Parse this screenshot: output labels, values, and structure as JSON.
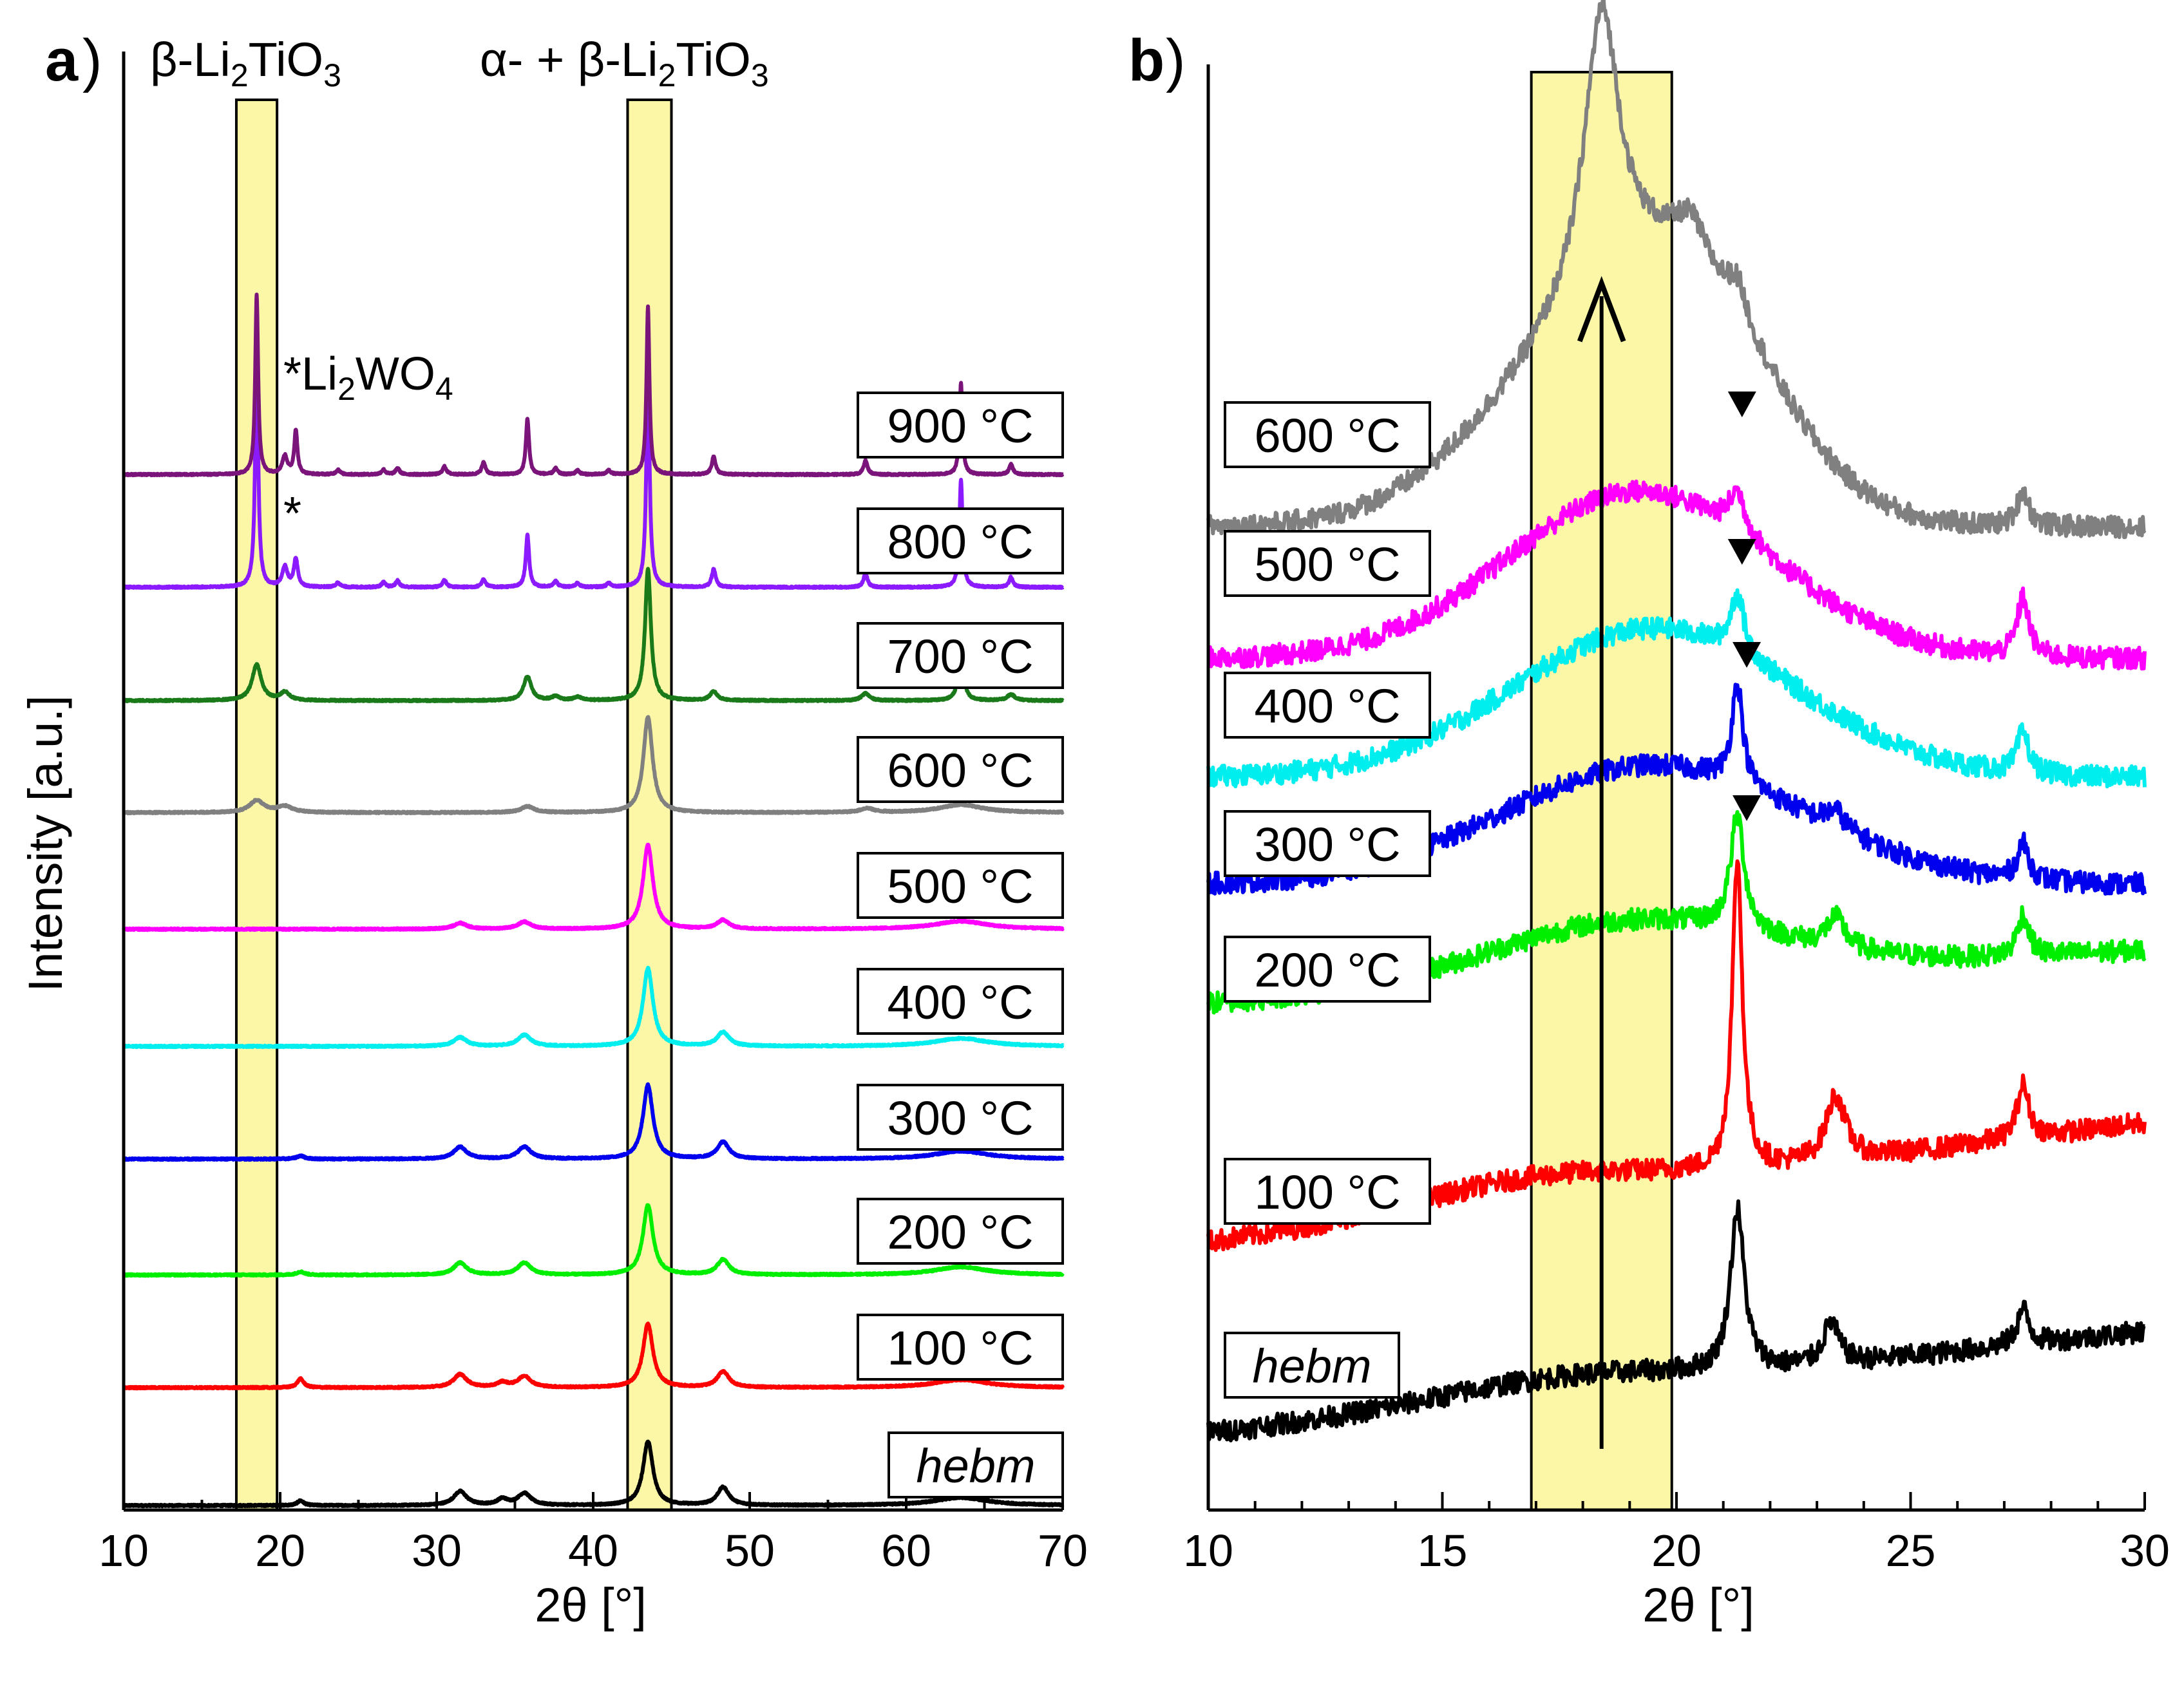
{
  "chart_data": [
    {
      "type": "line",
      "panel_label": "a",
      "xlabel": "2θ [°]",
      "ylabel": "Intensity [a.u.]",
      "xlim": [
        10,
        70
      ],
      "x_ticks": [
        10,
        20,
        30,
        40,
        50,
        60,
        70
      ],
      "y_ticks_shown": false,
      "highlight_bands": [
        {
          "x": [
            17.2,
            19.8
          ],
          "color": "#fbf7a6"
        },
        {
          "x": [
            42.2,
            45.0
          ],
          "color": "#fbf7a6"
        }
      ],
      "annotations": [
        {
          "text": "β-Li",
          "sub": "2",
          "text2": "TiO",
          "sub2": "3",
          "id": "beta"
        },
        {
          "text": "α- + β-Li",
          "sub": "2",
          "text2": "TiO",
          "sub2": "3",
          "id": "alphabeta"
        },
        {
          "text": "*",
          "id": "star-900"
        },
        {
          "text": "Li",
          "sub": "2",
          "text2": "WO",
          "sub2": "4",
          "id": "li2wo4"
        },
        {
          "text": "*",
          "id": "star-800"
        }
      ],
      "series": [
        {
          "name": "hebm",
          "italic": true,
          "color": "#000000",
          "offset": 0,
          "baseline": 0.1,
          "peaks": [
            [
              21.3,
              0.12,
              0.25
            ],
            [
              31.5,
              0.35,
              0.5
            ],
            [
              34.2,
              0.15,
              0.4
            ],
            [
              35.6,
              0.3,
              0.5
            ],
            [
              43.5,
              1.6,
              0.38
            ],
            [
              48.3,
              0.45,
              0.45
            ],
            [
              63.5,
              0.2,
              2.0
            ]
          ]
        },
        {
          "name": "100 °C",
          "color": "#ff0000",
          "offset": 1,
          "baseline": 0.1,
          "peaks": [
            [
              21.3,
              0.22,
              0.25
            ],
            [
              31.5,
              0.33,
              0.5
            ],
            [
              34.2,
              0.12,
              0.4
            ],
            [
              35.6,
              0.28,
              0.5
            ],
            [
              43.5,
              1.6,
              0.38
            ],
            [
              48.3,
              0.4,
              0.45
            ],
            [
              63.5,
              0.2,
              2.0
            ]
          ]
        },
        {
          "name": "200 °C",
          "color": "#00ee00",
          "offset": 2,
          "baseline": 0.1,
          "peaks": [
            [
              21.3,
              0.08,
              0.3
            ],
            [
              31.5,
              0.3,
              0.5
            ],
            [
              35.6,
              0.3,
              0.5
            ],
            [
              43.5,
              1.75,
              0.38
            ],
            [
              48.3,
              0.38,
              0.45
            ],
            [
              63.5,
              0.2,
              2.0
            ]
          ]
        },
        {
          "name": "300 °C",
          "color": "#0000ee",
          "offset": 3,
          "baseline": 0.1,
          "peaks": [
            [
              21.3,
              0.08,
              0.3
            ],
            [
              31.5,
              0.3,
              0.5
            ],
            [
              35.6,
              0.3,
              0.5
            ],
            [
              43.5,
              1.85,
              0.38
            ],
            [
              48.3,
              0.42,
              0.45
            ],
            [
              63.5,
              0.2,
              2.0
            ]
          ]
        },
        {
          "name": "400 °C",
          "color": "#00eeee",
          "offset": 4,
          "baseline": 0.1,
          "peaks": [
            [
              31.5,
              0.22,
              0.5
            ],
            [
              35.6,
              0.28,
              0.5
            ],
            [
              43.5,
              1.95,
              0.38
            ],
            [
              48.3,
              0.35,
              0.45
            ],
            [
              63.5,
              0.2,
              2.0
            ]
          ]
        },
        {
          "name": "500 °C",
          "color": "#ff00ff",
          "offset": 5,
          "baseline": 0.1,
          "peaks": [
            [
              31.5,
              0.15,
              0.5
            ],
            [
              35.6,
              0.18,
              0.5
            ],
            [
              43.5,
              2.1,
              0.38
            ],
            [
              48.3,
              0.22,
              0.45
            ],
            [
              63.5,
              0.2,
              2.0
            ]
          ]
        },
        {
          "name": "600 °C",
          "color": "#808080",
          "offset": 6,
          "baseline": 0.1,
          "peaks": [
            [
              18.5,
              0.3,
              0.55
            ],
            [
              20.3,
              0.15,
              0.6
            ],
            [
              35.8,
              0.15,
              0.5
            ],
            [
              43.5,
              2.4,
              0.35
            ],
            [
              57.5,
              0.1,
              0.5
            ],
            [
              63.5,
              0.2,
              1.6
            ]
          ]
        },
        {
          "name": "700 °C",
          "color": "#1a7a1a",
          "offset": 7,
          "baseline": 0.1,
          "peaks": [
            [
              18.5,
              0.9,
              0.35
            ],
            [
              20.3,
              0.2,
              0.35
            ],
            [
              35.8,
              0.6,
              0.3
            ],
            [
              37.6,
              0.1,
              0.3
            ],
            [
              39.0,
              0.08,
              0.3
            ],
            [
              43.5,
              3.3,
              0.22
            ],
            [
              47.7,
              0.22,
              0.28
            ],
            [
              57.4,
              0.18,
              0.3
            ],
            [
              63.5,
              1.2,
              0.2
            ],
            [
              66.7,
              0.15,
              0.3
            ]
          ]
        },
        {
          "name": "800 °C",
          "color": "#8c1aff",
          "offset": 8,
          "baseline": 0.1,
          "peaks": [
            [
              18.5,
              5.6,
              0.12
            ],
            [
              20.3,
              0.5,
              0.2
            ],
            [
              21.0,
              0.7,
              0.15
            ],
            [
              23.7,
              0.12,
              0.15
            ],
            [
              26.6,
              0.12,
              0.15
            ],
            [
              27.5,
              0.16,
              0.15
            ],
            [
              30.5,
              0.18,
              0.15
            ],
            [
              33.0,
              0.2,
              0.15
            ],
            [
              35.8,
              1.3,
              0.13
            ],
            [
              37.6,
              0.15,
              0.15
            ],
            [
              39.0,
              0.1,
              0.15
            ],
            [
              41.0,
              0.1,
              0.15
            ],
            [
              43.5,
              5.1,
              0.13
            ],
            [
              47.7,
              0.45,
              0.15
            ],
            [
              57.4,
              0.35,
              0.15
            ],
            [
              63.5,
              2.7,
              0.12
            ],
            [
              66.7,
              0.25,
              0.15
            ]
          ]
        },
        {
          "name": "900 °C",
          "color": "#7a137a",
          "offset": 9,
          "baseline": 0.1,
          "peaks": [
            [
              18.5,
              4.5,
              0.11
            ],
            [
              20.3,
              0.45,
              0.2
            ],
            [
              21.0,
              1.1,
              0.12
            ],
            [
              23.7,
              0.12,
              0.15
            ],
            [
              26.6,
              0.12,
              0.15
            ],
            [
              27.5,
              0.16,
              0.15
            ],
            [
              30.5,
              0.2,
              0.15
            ],
            [
              33.0,
              0.3,
              0.15
            ],
            [
              35.8,
              1.4,
              0.12
            ],
            [
              37.6,
              0.15,
              0.15
            ],
            [
              39.0,
              0.1,
              0.15
            ],
            [
              41.0,
              0.1,
              0.15
            ],
            [
              43.5,
              4.2,
              0.11
            ],
            [
              47.7,
              0.45,
              0.15
            ],
            [
              57.4,
              0.35,
              0.15
            ],
            [
              63.5,
              2.3,
              0.11
            ],
            [
              66.7,
              0.25,
              0.15
            ]
          ]
        }
      ]
    },
    {
      "type": "line",
      "panel_label": "b",
      "xlabel": "2θ [°]",
      "xlim": [
        10,
        30
      ],
      "x_ticks": [
        10,
        15,
        20,
        25,
        30
      ],
      "y_ticks_shown": false,
      "highlight_bands": [
        {
          "x": [
            16.9,
            19.9
          ],
          "color": "#fbf7a6"
        }
      ],
      "arrow": {
        "x": 18.4,
        "direction": "up"
      },
      "markers": [
        {
          "type": "triangle-down",
          "x": 21.4,
          "near_series": "600 °C"
        },
        {
          "type": "triangle-down",
          "x": 21.4,
          "near_series": "500 °C"
        },
        {
          "type": "triangle-down",
          "x": 21.5,
          "near_series": "400 °C"
        },
        {
          "type": "triangle-down",
          "x": 21.5,
          "near_series": "300 °C"
        }
      ],
      "series": [
        {
          "name": "hebm",
          "italic": true,
          "color": "#000000",
          "start": 0.0,
          "slope": 0.85,
          "bumps": [
            [
              17.5,
              0.15,
              2.5
            ]
          ],
          "peaks": [
            [
              21.3,
              1.35,
              0.18
            ],
            [
              23.3,
              0.35,
              0.2
            ],
            [
              27.4,
              0.3,
              0.15
            ]
          ]
        },
        {
          "name": "100 °C",
          "color": "#ff0000",
          "start": 1.6,
          "slope": 1.0,
          "bumps": [
            [
              17.0,
              0.2,
              2.5
            ]
          ],
          "peaks": [
            [
              21.3,
              2.6,
              0.13
            ],
            [
              23.4,
              0.55,
              0.25
            ],
            [
              27.4,
              0.45,
              0.15
            ]
          ]
        },
        {
          "name": "200 °C",
          "color": "#00ee00",
          "start": 3.6,
          "slope": 0.45,
          "bumps": [
            [
              19.0,
              0.5,
              3.0
            ]
          ],
          "peaks": [
            [
              21.3,
              0.95,
              0.18
            ],
            [
              23.4,
              0.25,
              0.25
            ],
            [
              27.4,
              0.35,
              0.15
            ]
          ]
        },
        {
          "name": "300 °C",
          "color": "#0000ee",
          "start": 4.6,
          "slope": 0.0,
          "bumps": [
            [
              19.5,
              1.0,
              3.2
            ]
          ],
          "peaks": [
            [
              21.3,
              0.85,
              0.14
            ],
            [
              23.4,
              0.15,
              0.25
            ],
            [
              27.4,
              0.3,
              0.15
            ]
          ]
        },
        {
          "name": "400 °C",
          "color": "#00eeee",
          "start": 5.5,
          "slope": 0.0,
          "bumps": [
            [
              19.5,
              1.25,
              3.0
            ]
          ],
          "peaks": [
            [
              21.3,
              0.5,
              0.18
            ],
            [
              27.4,
              0.35,
              0.15
            ]
          ]
        },
        {
          "name": "500 °C",
          "color": "#ff00ff",
          "start": 6.5,
          "slope": 0.0,
          "bumps": [
            [
              19.2,
              1.4,
              2.8
            ]
          ],
          "peaks": [
            [
              21.3,
              0.35,
              0.22
            ],
            [
              27.4,
              0.5,
              0.15
            ]
          ]
        },
        {
          "name": "600 °C",
          "color": "#808080",
          "start": 7.6,
          "slope": 0.0,
          "bumps": [
            [
              18.6,
              1.6,
              2.5
            ],
            [
              20.5,
              0.9,
              1.8
            ]
          ],
          "peaks": [
            [
              18.4,
              2.3,
              0.45
            ],
            [
              20.3,
              0.35,
              0.4
            ],
            [
              21.3,
              0.3,
              0.25
            ],
            [
              27.4,
              0.3,
              0.15
            ]
          ]
        }
      ]
    }
  ],
  "panel_a": {
    "label": "a",
    "paren": ")",
    "xlabel": "2θ [°]",
    "ylabel": "Intensity [a.u.]",
    "annotation_beta": {
      "pre": "β-Li",
      "sub1": "2",
      "mid": "TiO",
      "sub2": "3"
    },
    "annotation_alphabeta": {
      "pre": "α- + β-Li",
      "sub1": "2",
      "mid": "TiO",
      "sub2": "3"
    },
    "annotation_li2wo4": {
      "star": "*",
      "pre": "Li",
      "sub1": "2",
      "mid": "WO",
      "sub2": "4"
    },
    "annotation_star": "*"
  },
  "panel_b": {
    "label": "b",
    "paren": ")",
    "xlabel": "2θ [°]"
  }
}
